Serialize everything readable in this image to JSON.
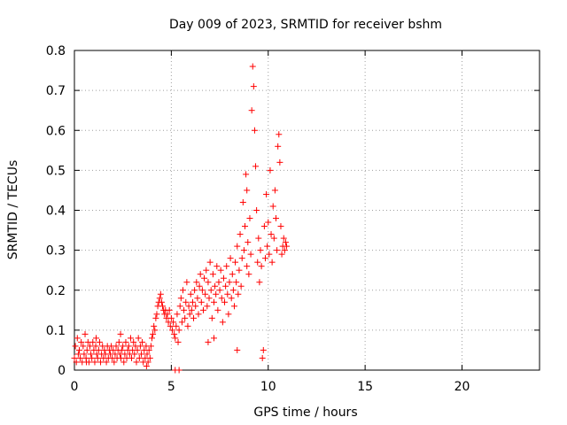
{
  "chart_data": {
    "type": "scatter",
    "title": "Day 009 of 2023, SRMTID for receiver bshm",
    "xlabel": "GPS time / hours",
    "ylabel": "SRMTID / TECUs",
    "xlim": [
      0,
      24
    ],
    "ylim": [
      0,
      0.8
    ],
    "x_ticks": [
      0,
      5,
      10,
      15,
      20
    ],
    "y_ticks": [
      0,
      0.1,
      0.2,
      0.3,
      0.4,
      0.5,
      0.6,
      0.7,
      0.8
    ],
    "x_tick_labels": [
      "0",
      "5",
      "10",
      "15",
      "20"
    ],
    "y_tick_labels": [
      "0",
      "0.1",
      "0.2",
      "0.3",
      "0.4",
      "0.5",
      "0.6",
      "0.7",
      "0.8"
    ],
    "grid": true,
    "marker": "+",
    "color": "#ff0000",
    "series": [
      {
        "name": "SRMTID",
        "points": [
          [
            0.0,
            0.03
          ],
          [
            0.05,
            0.06
          ],
          [
            0.1,
            0.02
          ],
          [
            0.15,
            0.08
          ],
          [
            0.2,
            0.04
          ],
          [
            0.25,
            0.05
          ],
          [
            0.3,
            0.03
          ],
          [
            0.35,
            0.07
          ],
          [
            0.4,
            0.02
          ],
          [
            0.45,
            0.06
          ],
          [
            0.5,
            0.04
          ],
          [
            0.55,
            0.09
          ],
          [
            0.6,
            0.03
          ],
          [
            0.65,
            0.05
          ],
          [
            0.7,
            0.07
          ],
          [
            0.75,
            0.02
          ],
          [
            0.8,
            0.06
          ],
          [
            0.85,
            0.04
          ],
          [
            0.9,
            0.03
          ],
          [
            0.95,
            0.07
          ],
          [
            1.0,
            0.05
          ],
          [
            1.05,
            0.02
          ],
          [
            1.1,
            0.06
          ],
          [
            1.15,
            0.04
          ],
          [
            1.2,
            0.03
          ],
          [
            1.25,
            0.05
          ],
          [
            1.3,
            0.07
          ],
          [
            1.35,
            0.02
          ],
          [
            1.4,
            0.04
          ],
          [
            1.45,
            0.06
          ],
          [
            1.5,
            0.03
          ],
          [
            1.55,
            0.05
          ],
          [
            1.6,
            0.04
          ],
          [
            1.65,
            0.02
          ],
          [
            1.7,
            0.06
          ],
          [
            1.75,
            0.03
          ],
          [
            1.8,
            0.05
          ],
          [
            1.85,
            0.04
          ],
          [
            1.9,
            0.06
          ],
          [
            1.95,
            0.03
          ],
          [
            2.0,
            0.05
          ],
          [
            2.05,
            0.02
          ],
          [
            2.1,
            0.04
          ],
          [
            2.15,
            0.06
          ],
          [
            2.2,
            0.03
          ],
          [
            2.25,
            0.05
          ],
          [
            2.3,
            0.07
          ],
          [
            2.35,
            0.04
          ],
          [
            2.4,
            0.03
          ],
          [
            2.45,
            0.05
          ],
          [
            2.5,
            0.06
          ],
          [
            2.55,
            0.02
          ],
          [
            2.6,
            0.04
          ],
          [
            2.65,
            0.07
          ],
          [
            2.7,
            0.03
          ],
          [
            2.75,
            0.05
          ],
          [
            2.8,
            0.06
          ],
          [
            2.85,
            0.04
          ],
          [
            2.9,
            0.08
          ],
          [
            2.95,
            0.03
          ],
          [
            3.0,
            0.05
          ],
          [
            3.05,
            0.07
          ],
          [
            3.1,
            0.04
          ],
          [
            3.15,
            0.06
          ],
          [
            3.2,
            0.02
          ],
          [
            3.25,
            0.05
          ],
          [
            3.3,
            0.08
          ],
          [
            3.35,
            0.03
          ],
          [
            3.4,
            0.06
          ],
          [
            3.45,
            0.04
          ],
          [
            3.5,
            0.07
          ],
          [
            3.55,
            0.02
          ],
          [
            3.6,
            0.05
          ],
          [
            3.65,
            0.03
          ],
          [
            3.7,
            0.06
          ],
          [
            3.75,
            0.04
          ],
          [
            3.8,
            0.02
          ],
          [
            3.85,
            0.05
          ],
          [
            3.9,
            0.03
          ],
          [
            3.95,
            0.06
          ],
          [
            4.0,
            0.08
          ],
          [
            4.05,
            0.09
          ],
          [
            4.1,
            0.11
          ],
          [
            4.15,
            0.1
          ],
          [
            4.2,
            0.13
          ],
          [
            4.25,
            0.14
          ],
          [
            4.3,
            0.16
          ],
          [
            4.35,
            0.17
          ],
          [
            4.4,
            0.18
          ],
          [
            4.45,
            0.19
          ],
          [
            4.5,
            0.17
          ],
          [
            4.55,
            0.16
          ],
          [
            4.6,
            0.15
          ],
          [
            4.65,
            0.14
          ],
          [
            4.7,
            0.15
          ],
          [
            4.75,
            0.13
          ],
          [
            4.8,
            0.14
          ],
          [
            4.85,
            0.12
          ],
          [
            4.9,
            0.15
          ],
          [
            4.95,
            0.11
          ],
          [
            5.0,
            0.13
          ],
          [
            5.05,
            0.1
          ],
          [
            5.1,
            0.12
          ],
          [
            5.15,
            0.09
          ],
          [
            5.2,
            0.08
          ],
          [
            5.25,
            0.11
          ],
          [
            5.3,
            0.14
          ],
          [
            5.35,
            0.07
          ],
          [
            5.4,
            0.1
          ],
          [
            5.45,
            0.16
          ],
          [
            5.5,
            0.18
          ],
          [
            5.55,
            0.12
          ],
          [
            5.6,
            0.2
          ],
          [
            5.65,
            0.15
          ],
          [
            5.7,
            0.13
          ],
          [
            5.75,
            0.17
          ],
          [
            5.8,
            0.22
          ],
          [
            5.85,
            0.11
          ],
          [
            5.9,
            0.16
          ],
          [
            5.95,
            0.14
          ],
          [
            6.0,
            0.19
          ],
          [
            6.05,
            0.15
          ],
          [
            6.1,
            0.17
          ],
          [
            6.15,
            0.13
          ],
          [
            6.2,
            0.2
          ],
          [
            6.25,
            0.16
          ],
          [
            6.3,
            0.22
          ],
          [
            6.35,
            0.18
          ],
          [
            6.4,
            0.14
          ],
          [
            6.45,
            0.21
          ],
          [
            6.5,
            0.24
          ],
          [
            6.55,
            0.17
          ],
          [
            6.6,
            0.2
          ],
          [
            6.65,
            0.15
          ],
          [
            6.7,
            0.23
          ],
          [
            6.75,
            0.19
          ],
          [
            6.8,
            0.25
          ],
          [
            6.85,
            0.16
          ],
          [
            6.9,
            0.22
          ],
          [
            6.95,
            0.18
          ],
          [
            7.0,
            0.27
          ],
          [
            7.05,
            0.2
          ],
          [
            7.1,
            0.13
          ],
          [
            7.15,
            0.24
          ],
          [
            7.2,
            0.17
          ],
          [
            7.25,
            0.21
          ],
          [
            7.3,
            0.19
          ],
          [
            7.35,
            0.26
          ],
          [
            7.4,
            0.15
          ],
          [
            7.45,
            0.22
          ],
          [
            7.5,
            0.2
          ],
          [
            7.55,
            0.25
          ],
          [
            7.6,
            0.18
          ],
          [
            7.65,
            0.12
          ],
          [
            7.7,
            0.23
          ],
          [
            7.75,
            0.17
          ],
          [
            7.8,
            0.21
          ],
          [
            7.85,
            0.26
          ],
          [
            7.9,
            0.19
          ],
          [
            7.95,
            0.14
          ],
          [
            8.0,
            0.22
          ],
          [
            8.05,
            0.28
          ],
          [
            8.1,
            0.18
          ],
          [
            8.15,
            0.24
          ],
          [
            8.2,
            0.2
          ],
          [
            8.25,
            0.16
          ],
          [
            8.3,
            0.27
          ],
          [
            8.35,
            0.22
          ],
          [
            8.4,
            0.31
          ],
          [
            8.45,
            0.19
          ],
          [
            8.5,
            0.25
          ],
          [
            8.55,
            0.34
          ],
          [
            8.6,
            0.21
          ],
          [
            8.65,
            0.28
          ],
          [
            8.7,
            0.42
          ],
          [
            8.75,
            0.3
          ],
          [
            8.8,
            0.36
          ],
          [
            8.85,
            0.49
          ],
          [
            8.9,
            0.26
          ],
          [
            8.95,
            0.32
          ],
          [
            9.0,
            0.24
          ],
          [
            9.05,
            0.38
          ],
          [
            9.1,
            0.29
          ],
          [
            9.15,
            0.65
          ],
          [
            9.2,
            0.76
          ],
          [
            9.25,
            0.71
          ],
          [
            9.3,
            0.6
          ],
          [
            9.35,
            0.51
          ],
          [
            9.4,
            0.4
          ],
          [
            9.45,
            0.27
          ],
          [
            9.5,
            0.33
          ],
          [
            9.55,
            0.22
          ],
          [
            9.6,
            0.3
          ],
          [
            9.65,
            0.26
          ],
          [
            9.7,
            0.03
          ],
          [
            9.75,
            0.05
          ],
          [
            9.8,
            0.36
          ],
          [
            9.85,
            0.28
          ],
          [
            9.9,
            0.44
          ],
          [
            9.95,
            0.31
          ],
          [
            10.0,
            0.37
          ],
          [
            10.05,
            0.29
          ],
          [
            10.1,
            0.5
          ],
          [
            10.15,
            0.34
          ],
          [
            10.2,
            0.27
          ],
          [
            10.25,
            0.41
          ],
          [
            10.3,
            0.33
          ],
          [
            10.35,
            0.45
          ],
          [
            10.4,
            0.38
          ],
          [
            10.45,
            0.3
          ],
          [
            10.5,
            0.56
          ],
          [
            10.55,
            0.59
          ],
          [
            10.6,
            0.52
          ],
          [
            10.65,
            0.36
          ],
          [
            10.7,
            0.29
          ],
          [
            10.75,
            0.31
          ],
          [
            10.8,
            0.33
          ],
          [
            10.85,
            0.3
          ],
          [
            10.9,
            0.32
          ],
          [
            10.95,
            0.31
          ],
          [
            1.12,
            0.08
          ],
          [
            2.38,
            0.09
          ],
          [
            0.62,
            0.02
          ],
          [
            3.72,
            0.01
          ],
          [
            5.2,
            0.0
          ],
          [
            5.4,
            0.0
          ],
          [
            8.4,
            0.05
          ],
          [
            7.2,
            0.08
          ],
          [
            6.9,
            0.07
          ],
          [
            8.9,
            0.45
          ]
        ]
      }
    ]
  }
}
